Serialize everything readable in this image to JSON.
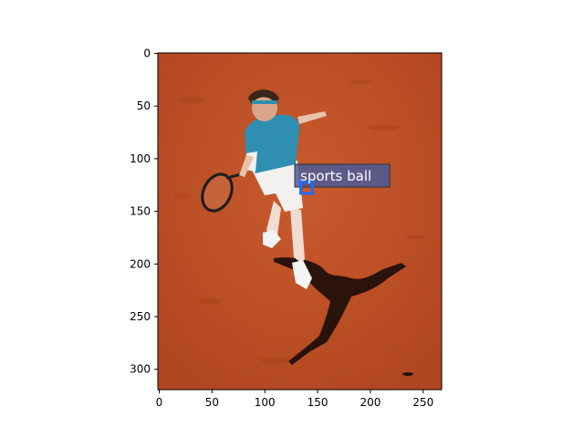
{
  "figure": {
    "image_description_icon": "tennis-player-photo",
    "colors": {
      "clay": "#c4532a",
      "clay_dark": "#a8431f",
      "shirt": "#2f8fb0",
      "shadow": "#1a0c08",
      "box_stroke": "#1e6cff",
      "label_bg": "#4a5a9a"
    }
  },
  "axes": {
    "x_ticks": [
      "0",
      "50",
      "100",
      "150",
      "200",
      "250"
    ],
    "y_ticks": [
      "0",
      "50",
      "100",
      "150",
      "200",
      "250",
      "300"
    ],
    "x_range": [
      0,
      268
    ],
    "y_range": [
      0,
      320
    ]
  },
  "detection": {
    "label": "sports ball",
    "box": {
      "x0": 134,
      "y0": 122,
      "x1": 145,
      "y1": 133
    }
  }
}
